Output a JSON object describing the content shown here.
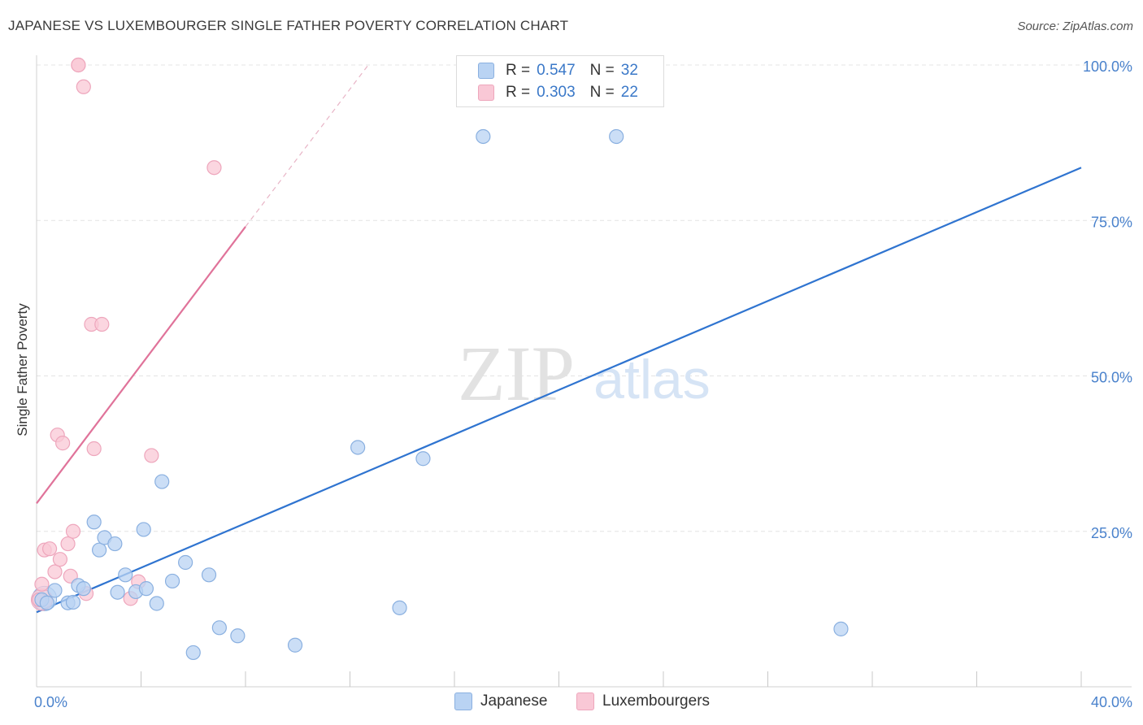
{
  "title": "JAPANESE VS LUXEMBOURGER SINGLE FATHER POVERTY CORRELATION CHART",
  "source": "Source: ZipAtlas.com",
  "watermark": {
    "zip": "ZIP",
    "atlas": "atlas"
  },
  "legend": {
    "japanese": {
      "r_label": "R =",
      "r_value": "0.547",
      "n_label": "N =",
      "n_value": "32"
    },
    "luxembourger": {
      "r_label": "R =",
      "r_value": "0.303",
      "n_label": "N =",
      "n_value": "22"
    }
  },
  "colors": {
    "japanese_fill": "#b9d3f3",
    "japanese_stroke": "#8ab0e0",
    "japanese_line": "#2f74d0",
    "lux_fill": "#f9c8d6",
    "lux_stroke": "#eea6bc",
    "lux_line": "#e0739a",
    "axis_text": "#4a82cc",
    "grid": "#e4e4e4"
  },
  "chart_data": {
    "type": "scatter",
    "title": "JAPANESE VS LUXEMBOURGER SINGLE FATHER POVERTY CORRELATION CHART",
    "xlabel": "",
    "ylabel": "Single Father Poverty",
    "xlim": [
      0,
      40
    ],
    "ylim": [
      0,
      100
    ],
    "x_tick_labels": [
      "0.0%",
      "40.0%"
    ],
    "y_tick_labels": [
      "25.0%",
      "50.0%",
      "75.0%",
      "100.0%"
    ],
    "y_ticks": [
      25,
      50,
      75,
      100
    ],
    "grid": true,
    "legend_position": "top-center",
    "series": [
      {
        "name": "Japanese",
        "points": [
          [
            0.2,
            14.0
          ],
          [
            0.4,
            13.5
          ],
          [
            0.7,
            15.5
          ],
          [
            1.2,
            13.5
          ],
          [
            1.4,
            13.6
          ],
          [
            1.6,
            16.3
          ],
          [
            1.8,
            15.8
          ],
          [
            2.2,
            26.5
          ],
          [
            2.4,
            22.0
          ],
          [
            2.6,
            24.0
          ],
          [
            3.0,
            23.0
          ],
          [
            3.1,
            15.2
          ],
          [
            3.4,
            18.0
          ],
          [
            3.8,
            15.3
          ],
          [
            4.1,
            25.3
          ],
          [
            4.2,
            15.8
          ],
          [
            4.6,
            13.4
          ],
          [
            4.8,
            33.0
          ],
          [
            5.2,
            17.0
          ],
          [
            5.7,
            20.0
          ],
          [
            6.0,
            5.5
          ],
          [
            6.6,
            18.0
          ],
          [
            7.0,
            9.5
          ],
          [
            7.7,
            8.2
          ],
          [
            9.9,
            6.7
          ],
          [
            12.3,
            38.5
          ],
          [
            13.9,
            12.7
          ],
          [
            14.8,
            36.7
          ],
          [
            17.1,
            88.5
          ],
          [
            20.8,
            100.0
          ],
          [
            22.2,
            88.5
          ],
          [
            30.8,
            9.3
          ]
        ],
        "trend": {
          "x": [
            0.0,
            40.0
          ],
          "y": [
            12.0,
            83.5
          ]
        }
      },
      {
        "name": "Luxembourgers",
        "points": [
          [
            0.1,
            14.0
          ],
          [
            0.2,
            16.5
          ],
          [
            0.3,
            22.0
          ],
          [
            0.5,
            22.2
          ],
          [
            0.7,
            18.5
          ],
          [
            0.8,
            40.5
          ],
          [
            0.9,
            20.5
          ],
          [
            1.0,
            39.2
          ],
          [
            1.2,
            23.0
          ],
          [
            1.3,
            17.8
          ],
          [
            1.4,
            25.0
          ],
          [
            1.6,
            100.0
          ],
          [
            1.6,
            100.0
          ],
          [
            1.8,
            96.5
          ],
          [
            1.9,
            15.0
          ],
          [
            2.1,
            58.3
          ],
          [
            2.2,
            38.3
          ],
          [
            2.5,
            58.3
          ],
          [
            3.6,
            14.2
          ],
          [
            3.9,
            16.9
          ],
          [
            4.4,
            37.2
          ],
          [
            6.8,
            83.5
          ]
        ],
        "trend": {
          "x": [
            0.0,
            8.0
          ],
          "y": [
            29.5,
            74.0
          ]
        },
        "trend_extension": {
          "x": [
            8.0,
            12.7
          ],
          "y": [
            74.0,
            100.0
          ]
        }
      }
    ]
  },
  "bottom_legend": {
    "japanese": "Japanese",
    "luxembourger": "Luxembourgers"
  }
}
